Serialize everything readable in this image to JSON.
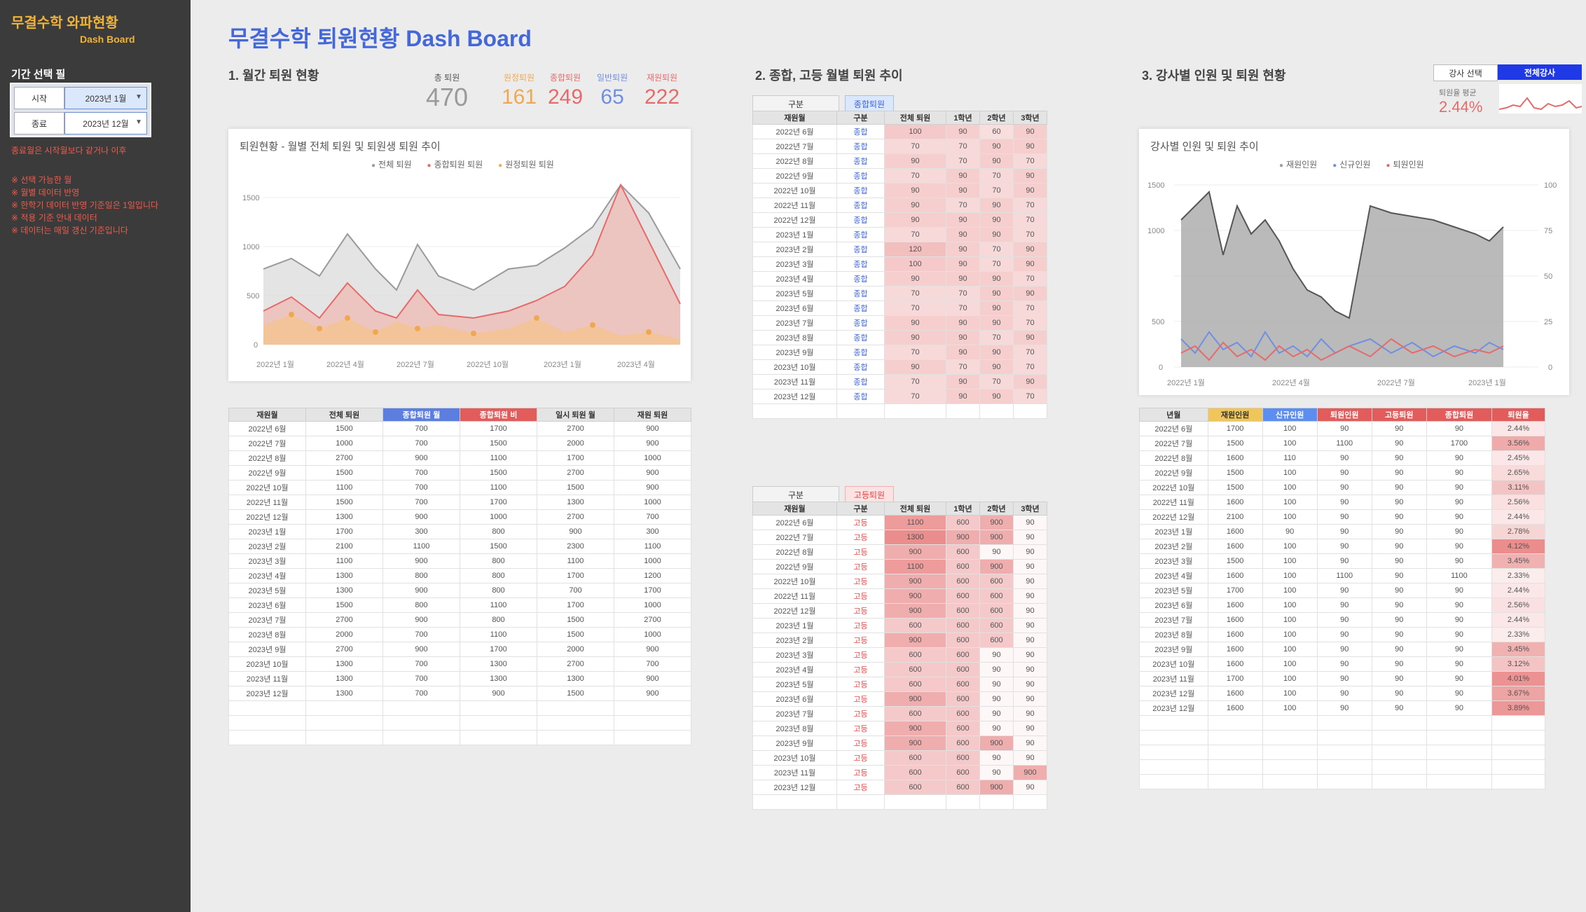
{
  "sidebar": {
    "title": "무결수학 와파현황",
    "subtitle": "Dash Board",
    "section": "기간 선택 필",
    "filter1": {
      "label": "시작",
      "value": "2023년 1월"
    },
    "filter2": {
      "label": "종료",
      "value": "2023년 12월"
    },
    "warn": "종료월은 시작월보다 같거나 이후",
    "notes": [
      "※ 선택 가능한 월",
      "※ 월별 데이터 반영",
      "※ 한학기 데이터 반영 기준일은 1일입니다",
      "※ 적용 기준 안내 데이터",
      "※ 데이터는 매일 갱신 기준입니다"
    ]
  },
  "main_title": "무결수학 퇴원현황 Dash Board",
  "section1": {
    "title": "1. 월간 퇴원 현황",
    "kpis": [
      {
        "label": "총 퇴원",
        "value": "470",
        "color": "#9a9a9a"
      },
      {
        "label": "원정퇴원",
        "value": "161",
        "color": "#f0a850"
      },
      {
        "label": "종합퇴원",
        "value": "249",
        "color": "#e56b6b"
      },
      {
        "label": "일반퇴원",
        "value": "65",
        "color": "#6f8fe0"
      },
      {
        "label": "재원퇴원",
        "value": "222",
        "color": "#e56b6b"
      }
    ],
    "chart": {
      "title": "퇴원현황 - 월별 전체 퇴원 및 퇴원생 퇴원 추이",
      "legend": [
        "전체 퇴원",
        "종합퇴원 퇴원",
        "원정퇴원 퇴원"
      ],
      "ylabels": [
        "1500",
        "1000",
        "500",
        "0"
      ],
      "xlabels": [
        "2022년 1월",
        "2022년 4월",
        "2022년 7월",
        "2022년 10월",
        "2023년 1월",
        "2023년 4월"
      ]
    },
    "table": {
      "headers": [
        "재원월",
        "전체 퇴원",
        "종합퇴원 월",
        "종합퇴원 비",
        "일시 퇴원 월",
        "재원 퇴원"
      ],
      "rows": [
        [
          "2022년 6월",
          "1500",
          "700",
          "1700",
          "2700",
          "900"
        ],
        [
          "2022년 7월",
          "1000",
          "700",
          "1500",
          "2000",
          "900"
        ],
        [
          "2022년 8월",
          "2700",
          "900",
          "1100",
          "1700",
          "1000"
        ],
        [
          "2022년 9월",
          "1500",
          "700",
          "1500",
          "2700",
          "900"
        ],
        [
          "2022년 10월",
          "1100",
          "700",
          "1100",
          "1500",
          "900"
        ],
        [
          "2022년 11월",
          "1500",
          "700",
          "1700",
          "1300",
          "1000"
        ],
        [
          "2022년 12월",
          "1300",
          "900",
          "1000",
          "2700",
          "700"
        ],
        [
          "2023년 1월",
          "1700",
          "300",
          "800",
          "900",
          "300"
        ],
        [
          "2023년 2월",
          "2100",
          "1100",
          "1500",
          "2300",
          "1100"
        ],
        [
          "2023년 3월",
          "1100",
          "900",
          "800",
          "1100",
          "1000"
        ],
        [
          "2023년 4월",
          "1300",
          "800",
          "800",
          "1700",
          "1200"
        ],
        [
          "2023년 5월",
          "1300",
          "900",
          "800",
          "700",
          "1700"
        ],
        [
          "2023년 6월",
          "1500",
          "800",
          "1100",
          "1700",
          "1000"
        ],
        [
          "2023년 7월",
          "2700",
          "900",
          "800",
          "1500",
          "2700"
        ],
        [
          "2023년 8월",
          "2000",
          "700",
          "1100",
          "1500",
          "1000"
        ],
        [
          "2023년 9월",
          "2700",
          "900",
          "1700",
          "2000",
          "900"
        ],
        [
          "2023년 10월",
          "1300",
          "700",
          "1300",
          "2700",
          "700"
        ],
        [
          "2023년 11월",
          "1300",
          "700",
          "1300",
          "1300",
          "900"
        ],
        [
          "2023년 12월",
          "1300",
          "700",
          "900",
          "1500",
          "900"
        ]
      ]
    }
  },
  "section2": {
    "title": "2. 종합, 고등 월별 퇴원 추이",
    "table1": {
      "tag_label": "구분",
      "tag_value": "종합퇴원",
      "headers": [
        "재원월",
        "구분",
        "전체 퇴원",
        "1학년",
        "2학년",
        "3학년"
      ],
      "rows": [
        [
          "2022년 6월",
          "종합",
          "100",
          "90",
          "60",
          "90"
        ],
        [
          "2022년 7월",
          "종합",
          "70",
          "70",
          "90",
          "90"
        ],
        [
          "2022년 8월",
          "종합",
          "90",
          "70",
          "90",
          "70"
        ],
        [
          "2022년 9월",
          "종합",
          "70",
          "90",
          "70",
          "90"
        ],
        [
          "2022년 10월",
          "종합",
          "90",
          "90",
          "70",
          "90"
        ],
        [
          "2022년 11월",
          "종합",
          "90",
          "70",
          "90",
          "70"
        ],
        [
          "2022년 12월",
          "종합",
          "90",
          "90",
          "90",
          "70"
        ],
        [
          "2023년 1월",
          "종합",
          "70",
          "90",
          "90",
          "70"
        ],
        [
          "2023년 2월",
          "종합",
          "120",
          "90",
          "70",
          "90"
        ],
        [
          "2023년 3월",
          "종합",
          "100",
          "90",
          "70",
          "90"
        ],
        [
          "2023년 4월",
          "종합",
          "90",
          "90",
          "90",
          "70"
        ],
        [
          "2023년 5월",
          "종합",
          "70",
          "70",
          "90",
          "90"
        ],
        [
          "2023년 6월",
          "종합",
          "70",
          "70",
          "90",
          "70"
        ],
        [
          "2023년 7월",
          "종합",
          "90",
          "90",
          "90",
          "70"
        ],
        [
          "2023년 8월",
          "종합",
          "90",
          "90",
          "70",
          "90"
        ],
        [
          "2023년 9월",
          "종합",
          "70",
          "90",
          "90",
          "70"
        ],
        [
          "2023년 10월",
          "종합",
          "90",
          "70",
          "90",
          "70"
        ],
        [
          "2023년 11월",
          "종합",
          "70",
          "90",
          "70",
          "90"
        ],
        [
          "2023년 12월",
          "종합",
          "70",
          "90",
          "90",
          "70"
        ]
      ]
    },
    "table2": {
      "tag_label": "구분",
      "tag_value": "고등퇴원",
      "headers": [
        "재원월",
        "구분",
        "전체 퇴원",
        "1학년",
        "2학년",
        "3학년"
      ],
      "rows": [
        [
          "2022년 6월",
          "고등",
          "1100",
          "600",
          "900",
          "90"
        ],
        [
          "2022년 7월",
          "고등",
          "1300",
          "900",
          "900",
          "90"
        ],
        [
          "2022년 8월",
          "고등",
          "900",
          "600",
          "90",
          "90"
        ],
        [
          "2022년 9월",
          "고등",
          "1100",
          "600",
          "900",
          "90"
        ],
        [
          "2022년 10월",
          "고등",
          "900",
          "600",
          "600",
          "90"
        ],
        [
          "2022년 11월",
          "고등",
          "900",
          "600",
          "600",
          "90"
        ],
        [
          "2022년 12월",
          "고등",
          "900",
          "600",
          "600",
          "90"
        ],
        [
          "2023년 1월",
          "고등",
          "600",
          "600",
          "600",
          "90"
        ],
        [
          "2023년 2월",
          "고등",
          "900",
          "600",
          "600",
          "90"
        ],
        [
          "2023년 3월",
          "고등",
          "600",
          "600",
          "90",
          "90"
        ],
        [
          "2023년 4월",
          "고등",
          "600",
          "600",
          "90",
          "90"
        ],
        [
          "2023년 5월",
          "고등",
          "600",
          "600",
          "90",
          "90"
        ],
        [
          "2023년 6월",
          "고등",
          "900",
          "600",
          "90",
          "90"
        ],
        [
          "2023년 7월",
          "고등",
          "600",
          "600",
          "90",
          "90"
        ],
        [
          "2023년 8월",
          "고등",
          "900",
          "600",
          "90",
          "90"
        ],
        [
          "2023년 9월",
          "고등",
          "900",
          "600",
          "900",
          "90"
        ],
        [
          "2023년 10월",
          "고등",
          "600",
          "600",
          "90",
          "90"
        ],
        [
          "2023년 11월",
          "고등",
          "600",
          "600",
          "90",
          "900"
        ],
        [
          "2023년 12월",
          "고등",
          "600",
          "600",
          "900",
          "90"
        ]
      ]
    }
  },
  "section3": {
    "title": "3. 강사별 인원 및 퇴원 현황",
    "tab_left": "강사 선택",
    "tab_right": "전체강사",
    "mini_label": "퇴원율 평균",
    "mini_value": "2.44%",
    "chart": {
      "title": "강사별 인원 및 퇴원 추이",
      "legend": [
        "재원인원",
        "신규인원",
        "퇴원인원"
      ],
      "ylabels": [
        "1500",
        "1000",
        "500",
        "0"
      ],
      "ylabels_right": [
        "100",
        "75",
        "50",
        "25",
        "0"
      ],
      "xlabels": [
        "2022년 1월",
        "2022년 4월",
        "2022년 7월",
        "2023년 1월"
      ]
    },
    "table": {
      "headers": [
        "년월",
        "재원인원",
        "신규인원",
        "퇴원인원",
        "고등퇴원",
        "종합퇴원",
        "퇴원율"
      ],
      "rows": [
        [
          "2022년 6월",
          "1700",
          "100",
          "90",
          "90",
          "90",
          "2.44%"
        ],
        [
          "2022년 7월",
          "1500",
          "100",
          "1100",
          "90",
          "1700",
          "3.56%"
        ],
        [
          "2022년 8월",
          "1600",
          "110",
          "90",
          "90",
          "90",
          "2.45%"
        ],
        [
          "2022년 9월",
          "1500",
          "100",
          "90",
          "90",
          "90",
          "2.65%"
        ],
        [
          "2022년 10월",
          "1500",
          "100",
          "90",
          "90",
          "90",
          "3.11%"
        ],
        [
          "2022년 11월",
          "1600",
          "100",
          "90",
          "90",
          "90",
          "2.56%"
        ],
        [
          "2022년 12월",
          "2100",
          "100",
          "90",
          "90",
          "90",
          "2.44%"
        ],
        [
          "2023년 1월",
          "1600",
          "90",
          "90",
          "90",
          "90",
          "2.78%"
        ],
        [
          "2023년 2월",
          "1600",
          "100",
          "90",
          "90",
          "90",
          "4.12%"
        ],
        [
          "2023년 3월",
          "1500",
          "100",
          "90",
          "90",
          "90",
          "3.45%"
        ],
        [
          "2023년 4월",
          "1600",
          "100",
          "1100",
          "90",
          "1100",
          "2.33%"
        ],
        [
          "2023년 5월",
          "1700",
          "100",
          "90",
          "90",
          "90",
          "2.44%"
        ],
        [
          "2023년 6월",
          "1600",
          "100",
          "90",
          "90",
          "90",
          "2.56%"
        ],
        [
          "2023년 7월",
          "1600",
          "100",
          "90",
          "90",
          "90",
          "2.44%"
        ],
        [
          "2023년 8월",
          "1600",
          "100",
          "90",
          "90",
          "90",
          "2.33%"
        ],
        [
          "2023년 9월",
          "1600",
          "100",
          "90",
          "90",
          "90",
          "3.45%"
        ],
        [
          "2023년 10월",
          "1600",
          "100",
          "90",
          "90",
          "90",
          "3.12%"
        ],
        [
          "2023년 11월",
          "1700",
          "100",
          "90",
          "90",
          "90",
          "4.01%"
        ],
        [
          "2023년 12월",
          "1600",
          "100",
          "90",
          "90",
          "90",
          "3.67%"
        ],
        [
          "2023년 12월",
          "1600",
          "100",
          "90",
          "90",
          "90",
          "3.89%"
        ]
      ]
    }
  }
}
